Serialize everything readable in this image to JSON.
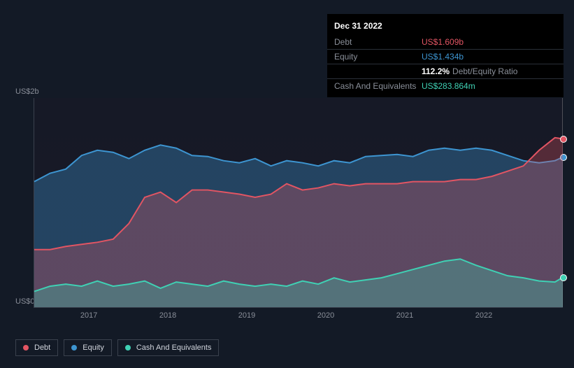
{
  "tooltip": {
    "date": "Dec 31 2022",
    "rows": [
      {
        "label": "Debt",
        "value": "US$1.609b",
        "color": "#e25563"
      },
      {
        "label": "Equity",
        "value": "US$1.434b",
        "color": "#3d95d1"
      },
      {
        "label": "",
        "pct": "112.2%",
        "sub": "Debt/Equity Ratio",
        "pct_color": "#ffffff"
      },
      {
        "label": "Cash And Equivalents",
        "value": "US$283.864m",
        "color": "#3fd1b4"
      }
    ]
  },
  "chart": {
    "type": "area",
    "background_color": "#131a26",
    "grid_color": "#3a414d",
    "y_axis": {
      "min": 0,
      "max": 2,
      "labels": [
        {
          "text": "US$2b",
          "v": 2
        },
        {
          "text": "US$0",
          "v": 0
        }
      ],
      "label_color": "#8a8f99",
      "label_fontsize": 11
    },
    "x_axis": {
      "ticks": [
        "2017",
        "2018",
        "2019",
        "2020",
        "2021",
        "2022"
      ],
      "min_year": 2016.3,
      "max_year": 2023.0,
      "label_color": "#8a8f99",
      "label_fontsize": 11
    },
    "series": [
      {
        "name": "Equity",
        "color": "#3d95d1",
        "fill_opacity": 0.35,
        "stroke_width": 2,
        "data": [
          [
            2016.3,
            1.2
          ],
          [
            2016.5,
            1.28
          ],
          [
            2016.7,
            1.32
          ],
          [
            2016.9,
            1.45
          ],
          [
            2017.1,
            1.5
          ],
          [
            2017.3,
            1.48
          ],
          [
            2017.5,
            1.42
          ],
          [
            2017.7,
            1.5
          ],
          [
            2017.9,
            1.55
          ],
          [
            2018.1,
            1.52
          ],
          [
            2018.3,
            1.45
          ],
          [
            2018.5,
            1.44
          ],
          [
            2018.7,
            1.4
          ],
          [
            2018.9,
            1.38
          ],
          [
            2019.1,
            1.42
          ],
          [
            2019.3,
            1.35
          ],
          [
            2019.5,
            1.4
          ],
          [
            2019.7,
            1.38
          ],
          [
            2019.9,
            1.35
          ],
          [
            2020.1,
            1.4
          ],
          [
            2020.3,
            1.38
          ],
          [
            2020.5,
            1.44
          ],
          [
            2020.7,
            1.45
          ],
          [
            2020.9,
            1.46
          ],
          [
            2021.1,
            1.44
          ],
          [
            2021.3,
            1.5
          ],
          [
            2021.5,
            1.52
          ],
          [
            2021.7,
            1.5
          ],
          [
            2021.9,
            1.52
          ],
          [
            2022.1,
            1.5
          ],
          [
            2022.3,
            1.45
          ],
          [
            2022.5,
            1.4
          ],
          [
            2022.7,
            1.38
          ],
          [
            2022.9,
            1.4
          ],
          [
            2023.0,
            1.434
          ]
        ]
      },
      {
        "name": "Debt",
        "color": "#e25563",
        "fill_opacity": 0.3,
        "stroke_width": 2,
        "data": [
          [
            2016.3,
            0.55
          ],
          [
            2016.5,
            0.55
          ],
          [
            2016.7,
            0.58
          ],
          [
            2016.9,
            0.6
          ],
          [
            2017.1,
            0.62
          ],
          [
            2017.3,
            0.65
          ],
          [
            2017.5,
            0.8
          ],
          [
            2017.7,
            1.05
          ],
          [
            2017.9,
            1.1
          ],
          [
            2018.1,
            1.0
          ],
          [
            2018.3,
            1.12
          ],
          [
            2018.5,
            1.12
          ],
          [
            2018.7,
            1.1
          ],
          [
            2018.9,
            1.08
          ],
          [
            2019.1,
            1.05
          ],
          [
            2019.3,
            1.08
          ],
          [
            2019.5,
            1.18
          ],
          [
            2019.7,
            1.12
          ],
          [
            2019.9,
            1.14
          ],
          [
            2020.1,
            1.18
          ],
          [
            2020.3,
            1.16
          ],
          [
            2020.5,
            1.18
          ],
          [
            2020.7,
            1.18
          ],
          [
            2020.9,
            1.18
          ],
          [
            2021.1,
            1.2
          ],
          [
            2021.3,
            1.2
          ],
          [
            2021.5,
            1.2
          ],
          [
            2021.7,
            1.22
          ],
          [
            2021.9,
            1.22
          ],
          [
            2022.1,
            1.25
          ],
          [
            2022.3,
            1.3
          ],
          [
            2022.5,
            1.35
          ],
          [
            2022.7,
            1.5
          ],
          [
            2022.9,
            1.62
          ],
          [
            2023.0,
            1.609
          ]
        ]
      },
      {
        "name": "Cash And Equivalents",
        "color": "#3fd1b4",
        "fill_opacity": 0.3,
        "stroke_width": 2,
        "data": [
          [
            2016.3,
            0.15
          ],
          [
            2016.5,
            0.2
          ],
          [
            2016.7,
            0.22
          ],
          [
            2016.9,
            0.2
          ],
          [
            2017.1,
            0.25
          ],
          [
            2017.3,
            0.2
          ],
          [
            2017.5,
            0.22
          ],
          [
            2017.7,
            0.25
          ],
          [
            2017.9,
            0.18
          ],
          [
            2018.1,
            0.24
          ],
          [
            2018.3,
            0.22
          ],
          [
            2018.5,
            0.2
          ],
          [
            2018.7,
            0.25
          ],
          [
            2018.9,
            0.22
          ],
          [
            2019.1,
            0.2
          ],
          [
            2019.3,
            0.22
          ],
          [
            2019.5,
            0.2
          ],
          [
            2019.7,
            0.25
          ],
          [
            2019.9,
            0.22
          ],
          [
            2020.1,
            0.28
          ],
          [
            2020.3,
            0.24
          ],
          [
            2020.5,
            0.26
          ],
          [
            2020.7,
            0.28
          ],
          [
            2020.9,
            0.32
          ],
          [
            2021.1,
            0.36
          ],
          [
            2021.3,
            0.4
          ],
          [
            2021.5,
            0.44
          ],
          [
            2021.7,
            0.46
          ],
          [
            2021.9,
            0.4
          ],
          [
            2022.1,
            0.35
          ],
          [
            2022.3,
            0.3
          ],
          [
            2022.5,
            0.28
          ],
          [
            2022.7,
            0.25
          ],
          [
            2022.9,
            0.24
          ],
          [
            2023.0,
            0.284
          ]
        ]
      }
    ],
    "legend": {
      "border_color": "#3a414d",
      "text_color": "#d0d4dc",
      "items": [
        {
          "label": "Debt",
          "color": "#e25563"
        },
        {
          "label": "Equity",
          "color": "#3d95d1"
        },
        {
          "label": "Cash And Equivalents",
          "color": "#3fd1b4"
        }
      ]
    }
  }
}
